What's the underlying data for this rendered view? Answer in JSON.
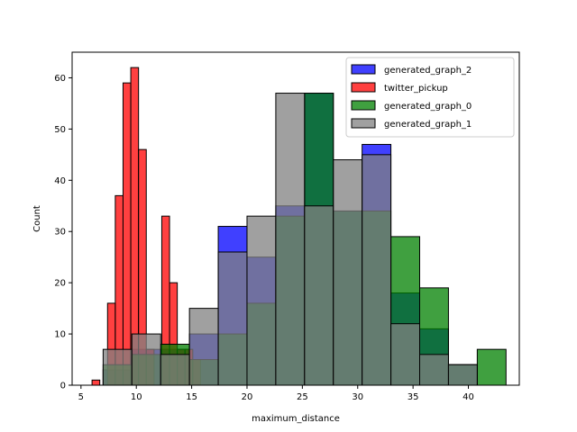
{
  "chart_data": {
    "type": "bar",
    "subtype": "histogram",
    "xlabel": "maximum_distance",
    "ylabel": "Count",
    "xlim": [
      4.2,
      44.6
    ],
    "ylim": [
      0,
      65
    ],
    "xticks": [
      5,
      10,
      15,
      20,
      25,
      30,
      35,
      40
    ],
    "yticks": [
      0,
      10,
      20,
      30,
      40,
      50,
      60
    ],
    "grid": false,
    "legend_position": "top-right",
    "bar_opacity": 0.75,
    "series": [
      {
        "name": "generated_graph_2",
        "color": "#0000ff",
        "bins": [
          {
            "x0": 7.0,
            "x1": 9.6,
            "count": 3
          },
          {
            "x0": 9.6,
            "x1": 12.2,
            "count": 7
          },
          {
            "x0": 12.2,
            "x1": 14.8,
            "count": 7
          },
          {
            "x0": 14.8,
            "x1": 17.4,
            "count": 10
          },
          {
            "x0": 17.4,
            "x1": 20.0,
            "count": 31
          },
          {
            "x0": 20.0,
            "x1": 22.6,
            "count": 25
          },
          {
            "x0": 22.6,
            "x1": 25.2,
            "count": 35
          },
          {
            "x0": 25.2,
            "x1": 27.8,
            "count": 57
          },
          {
            "x0": 27.8,
            "x1": 30.4,
            "count": 34
          },
          {
            "x0": 30.4,
            "x1": 33.0,
            "count": 47
          },
          {
            "x0": 33.0,
            "x1": 35.6,
            "count": 18
          },
          {
            "x0": 35.6,
            "x1": 38.2,
            "count": 11
          },
          {
            "x0": 38.2,
            "x1": 40.8,
            "count": 4
          }
        ]
      },
      {
        "name": "twitter_pickup",
        "color": "#ff0000",
        "bins": [
          {
            "x0": 6.0,
            "x1": 6.7,
            "count": 1
          },
          {
            "x0": 6.7,
            "x1": 7.4,
            "count": 0
          },
          {
            "x0": 7.4,
            "x1": 8.1,
            "count": 16
          },
          {
            "x0": 8.1,
            "x1": 8.8,
            "count": 37
          },
          {
            "x0": 8.8,
            "x1": 9.5,
            "count": 59
          },
          {
            "x0": 9.5,
            "x1": 10.2,
            "count": 62
          },
          {
            "x0": 10.2,
            "x1": 10.9,
            "count": 46
          },
          {
            "x0": 10.9,
            "x1": 11.6,
            "count": 7
          },
          {
            "x0": 11.6,
            "x1": 12.3,
            "count": 0
          },
          {
            "x0": 12.3,
            "x1": 13.0,
            "count": 33
          },
          {
            "x0": 13.0,
            "x1": 13.7,
            "count": 20
          },
          {
            "x0": 13.7,
            "x1": 14.4,
            "count": 7
          },
          {
            "x0": 14.4,
            "x1": 15.1,
            "count": 7
          },
          {
            "x0": 15.1,
            "x1": 15.8,
            "count": 5
          }
        ]
      },
      {
        "name": "generated_graph_0",
        "color": "#008000",
        "bins": [
          {
            "x0": 7.0,
            "x1": 9.6,
            "count": 4
          },
          {
            "x0": 9.6,
            "x1": 12.2,
            "count": 6
          },
          {
            "x0": 12.2,
            "x1": 14.8,
            "count": 8
          },
          {
            "x0": 14.8,
            "x1": 17.4,
            "count": 5
          },
          {
            "x0": 17.4,
            "x1": 20.0,
            "count": 10
          },
          {
            "x0": 20.0,
            "x1": 22.6,
            "count": 16
          },
          {
            "x0": 22.6,
            "x1": 25.2,
            "count": 33
          },
          {
            "x0": 25.2,
            "x1": 27.8,
            "count": 57
          },
          {
            "x0": 27.8,
            "x1": 30.4,
            "count": 34
          },
          {
            "x0": 30.4,
            "x1": 33.0,
            "count": 34
          },
          {
            "x0": 33.0,
            "x1": 35.6,
            "count": 29
          },
          {
            "x0": 35.6,
            "x1": 38.2,
            "count": 19
          },
          {
            "x0": 38.2,
            "x1": 40.8,
            "count": 4
          },
          {
            "x0": 40.8,
            "x1": 43.4,
            "count": 7
          }
        ]
      },
      {
        "name": "generated_graph_1",
        "color": "#808080",
        "bins": [
          {
            "x0": 7.0,
            "x1": 9.6,
            "count": 7
          },
          {
            "x0": 9.6,
            "x1": 12.2,
            "count": 10
          },
          {
            "x0": 12.2,
            "x1": 14.8,
            "count": 6
          },
          {
            "x0": 14.8,
            "x1": 17.4,
            "count": 15
          },
          {
            "x0": 17.4,
            "x1": 20.0,
            "count": 26
          },
          {
            "x0": 20.0,
            "x1": 22.6,
            "count": 33
          },
          {
            "x0": 22.6,
            "x1": 25.2,
            "count": 57
          },
          {
            "x0": 25.2,
            "x1": 27.8,
            "count": 35
          },
          {
            "x0": 27.8,
            "x1": 30.4,
            "count": 44
          },
          {
            "x0": 30.4,
            "x1": 33.0,
            "count": 45
          },
          {
            "x0": 33.0,
            "x1": 35.6,
            "count": 12
          },
          {
            "x0": 35.6,
            "x1": 38.2,
            "count": 6
          },
          {
            "x0": 38.2,
            "x1": 40.8,
            "count": 4
          }
        ]
      }
    ]
  }
}
